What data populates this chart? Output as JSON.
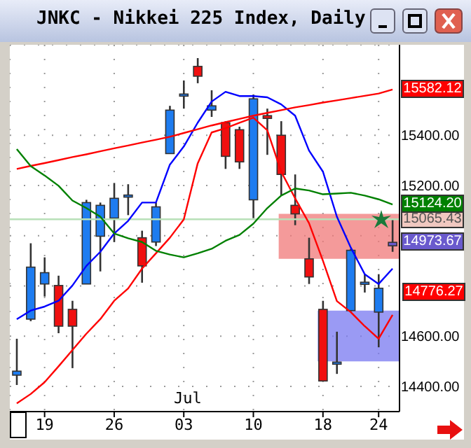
{
  "chart_data": {
    "type": "candlestick",
    "title": "JNKC - Nikkei 225 Index, Daily",
    "categories": [
      null,
      null,
      "19",
      null,
      null,
      null,
      null,
      "26",
      null,
      null,
      null,
      null,
      "03",
      null,
      null,
      null,
      null,
      "10",
      null,
      null,
      null,
      null,
      "18",
      null,
      null,
      null,
      "24",
      null
    ],
    "ohlc": [
      [
        14445,
        14590,
        14406,
        14461
      ],
      [
        14668,
        14970,
        14660,
        14875
      ],
      [
        14808,
        14914,
        14758,
        14853
      ],
      [
        14802,
        14841,
        14612,
        14640
      ],
      [
        14707,
        14741,
        14473,
        14640
      ],
      [
        14808,
        15143,
        14808,
        15132
      ],
      [
        14998,
        15132,
        14858,
        15121
      ],
      [
        15070,
        15210,
        14975,
        15149
      ],
      [
        15158,
        15205,
        15082,
        15162
      ],
      [
        14992,
        15020,
        14813,
        14880
      ],
      [
        14975,
        15132,
        14959,
        15115
      ],
      [
        15327,
        15517,
        15327,
        15500
      ],
      [
        15560,
        15618,
        15506,
        15564
      ],
      [
        15674,
        15707,
        15607,
        15635
      ],
      [
        15500,
        15579,
        15473,
        15517
      ],
      [
        15450,
        15456,
        15266,
        15316
      ],
      [
        15422,
        15434,
        15266,
        15294
      ],
      [
        15143,
        15562,
        15070,
        15545
      ],
      [
        15478,
        15506,
        15322,
        15467
      ],
      [
        15400,
        15456,
        15160,
        15244
      ],
      [
        15121,
        15244,
        15042,
        15087
      ],
      [
        14908,
        14992,
        14808,
        14836
      ],
      [
        14707,
        14741,
        14422,
        14422
      ],
      [
        14493,
        14618,
        14450,
        14497
      ],
      [
        14702,
        14948,
        14700,
        14942
      ],
      [
        14811,
        14847,
        14774,
        14815
      ],
      [
        14696,
        14847,
        14556,
        14791
      ],
      [
        14960,
        15065.43,
        14936,
        14973.67
      ]
    ],
    "colors": [
      "#1e7cf0",
      "#1e7cf0",
      "#1e7cf0",
      "#f01010",
      "#f01010",
      "#1e7cf0",
      "#1e7cf0",
      "#1e7cf0",
      "#1e7cf0",
      "#f01010",
      "#1e7cf0",
      "#1e7cf0",
      "#1e7cf0",
      "#f01010",
      "#1e7cf0",
      "#f01010",
      "#f01010",
      "#1e7cf0",
      "#f01010",
      "#f01010",
      "#f01010",
      "#f01010",
      "#f01010",
      "#1e7cf0",
      "#1e7cf0",
      "#1e7cf0",
      "#1e7cf0",
      "#6a5acd"
    ],
    "series": [
      {
        "type": "line",
        "color": "#0000ff",
        "values": [
          14668,
          14702,
          14718,
          14741,
          14802,
          14880,
          14936,
          15009,
          15059,
          15132,
          15132,
          15283,
          15355,
          15450,
          15534,
          15573,
          15556,
          15556,
          15551,
          15523,
          15478,
          15339,
          15255,
          15076,
          14953,
          14847,
          14808,
          14869
        ]
      },
      {
        "type": "line",
        "color": "#ff0000",
        "values": [
          14333,
          14370,
          14417,
          14480,
          14545,
          14610,
          14668,
          14741,
          14790,
          14869,
          14930,
          14992,
          15065,
          15288,
          15411,
          15428,
          15450,
          15470,
          15420,
          15255,
          15149,
          15050,
          14900,
          14740,
          14696,
          14640,
          14590,
          14685
        ]
      },
      {
        "type": "line",
        "color": "#ff0000",
        "values": [
          15266,
          15278,
          15289,
          15301,
          15313,
          15324,
          15336,
          15348,
          15359,
          15371,
          15382,
          15394,
          15409,
          15424,
          15439,
          15452,
          15465,
          15478,
          15489,
          15500,
          15511,
          15520,
          15530,
          15539,
          15548,
          15557,
          15566,
          15582.12
        ],
        "value_labels": [
          null,
          null,
          null,
          null,
          null,
          null,
          null,
          null,
          null,
          null,
          null,
          null,
          null,
          null,
          null,
          null,
          null,
          null,
          null,
          null,
          null,
          null,
          null,
          null,
          null,
          null,
          null,
          "15582.12"
        ]
      },
      {
        "type": "line",
        "color": "#008000",
        "values": [
          15345,
          15277,
          15240,
          15199,
          15140,
          15110,
          15076,
          15009,
          14990,
          14975,
          14940,
          14925,
          14914,
          14930,
          14948,
          14980,
          15003,
          15048,
          15110,
          15160,
          15188,
          15180,
          15165,
          15168,
          15171,
          15160,
          15145,
          15124.2
        ],
        "value_labels": [
          null,
          null,
          null,
          null,
          null,
          null,
          null,
          null,
          null,
          null,
          null,
          null,
          null,
          null,
          null,
          null,
          null,
          null,
          null,
          null,
          null,
          null,
          null,
          null,
          null,
          null,
          null,
          "15124.20"
        ]
      }
    ],
    "ylim": [
      14300,
      15760
    ],
    "yticks": [
      {
        "value": 14400,
        "label": "14400.00"
      },
      {
        "value": 14600,
        "label": "14600.00"
      },
      {
        "value": 14800,
        "label": null
      },
      {
        "value": 15000,
        "label": null
      },
      {
        "value": 15200,
        "label": "15200.00"
      },
      {
        "value": 15400,
        "label": "15400.00"
      }
    ],
    "grid": true,
    "ref_lines": [
      {
        "axis": "y",
        "value": 15065.43,
        "label": "15065.43",
        "color": "#b8e0b8"
      }
    ],
    "bands": [
      {
        "axis": "y",
        "from": 14908,
        "to": 15087,
        "color": "#f07878"
      },
      {
        "axis": "y",
        "from": 14500,
        "to": 14702,
        "color": "#7878f0"
      }
    ],
    "value_labels": [
      null,
      null,
      null,
      null,
      null,
      null,
      null,
      null,
      null,
      null,
      null,
      null,
      null,
      null,
      null,
      null,
      null,
      null,
      null,
      null,
      null,
      null,
      null,
      null,
      null,
      null,
      null,
      "14973.67"
    ],
    "annotations": [
      "Jul",
      "14776.27"
    ]
  }
}
